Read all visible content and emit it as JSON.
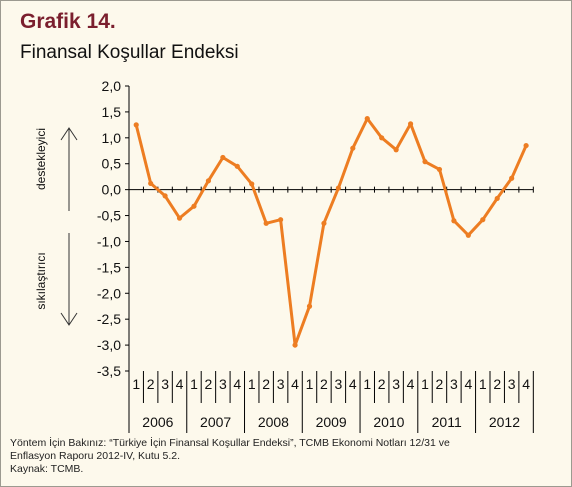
{
  "title": "Grafik 14.",
  "subtitle": "Finansal Koşullar Endeksi",
  "colors": {
    "line": "#ed7d22",
    "title": "#7b1f2e",
    "panel_background": "#fdf9ec"
  },
  "chart_data": {
    "type": "line",
    "ylim": [
      -3.5,
      2.0
    ],
    "y_ticks": [
      "2,0",
      "1,5",
      "1,0",
      "0,5",
      "0,0",
      "-0,5",
      "-1,0",
      "-1,5",
      "-2,0",
      "-2,5",
      "-3,0",
      "-3,5"
    ],
    "y_tick_values": [
      2.0,
      1.5,
      1.0,
      0.5,
      0.0,
      -0.5,
      -1.0,
      -1.5,
      -2.0,
      -2.5,
      -3.0,
      -3.5
    ],
    "grid": false,
    "legend": "none",
    "quarters": [
      "1",
      "2",
      "3",
      "4",
      "1",
      "2",
      "3",
      "4",
      "1",
      "2",
      "3",
      "4",
      "1",
      "2",
      "3",
      "4",
      "1",
      "2",
      "3",
      "4",
      "1",
      "2",
      "3",
      "4",
      "1",
      "2",
      "3",
      "4"
    ],
    "years": [
      "2006",
      "2007",
      "2008",
      "2009",
      "2010",
      "2011",
      "2012"
    ],
    "x": [
      "2006-Q1",
      "2006-Q2",
      "2006-Q3",
      "2006-Q4",
      "2007-Q1",
      "2007-Q2",
      "2007-Q3",
      "2007-Q4",
      "2008-Q1",
      "2008-Q2",
      "2008-Q3",
      "2008-Q4",
      "2009-Q1",
      "2009-Q2",
      "2009-Q3",
      "2009-Q4",
      "2010-Q1",
      "2010-Q2",
      "2010-Q3",
      "2010-Q4",
      "2011-Q1",
      "2011-Q2",
      "2011-Q3",
      "2011-Q4",
      "2012-Q1",
      "2012-Q2",
      "2012-Q3",
      "2012-Q4"
    ],
    "values": [
      1.25,
      0.12,
      -0.12,
      -0.55,
      -0.32,
      0.17,
      0.62,
      0.45,
      0.11,
      -0.65,
      -0.58,
      -3.0,
      -2.25,
      -0.65,
      0.03,
      0.8,
      1.37,
      1.0,
      0.77,
      1.27,
      0.54,
      0.39,
      -0.6,
      -0.88,
      -0.58,
      -0.17,
      0.22,
      0.85
    ],
    "annotations": {
      "upper": "destekleyici",
      "lower": "sıkılaştırıcı"
    }
  },
  "notes": {
    "method_line1": "Yöntem İçin Bakınız: “Türkiye İçin Finansal Koşullar Endeksi”, TCMB Ekonomi Notları 12/31 ve",
    "method_line2": "Enflasyon Raporu 2012-IV, Kutu 5.2.",
    "source": "Kaynak: TCMB."
  }
}
